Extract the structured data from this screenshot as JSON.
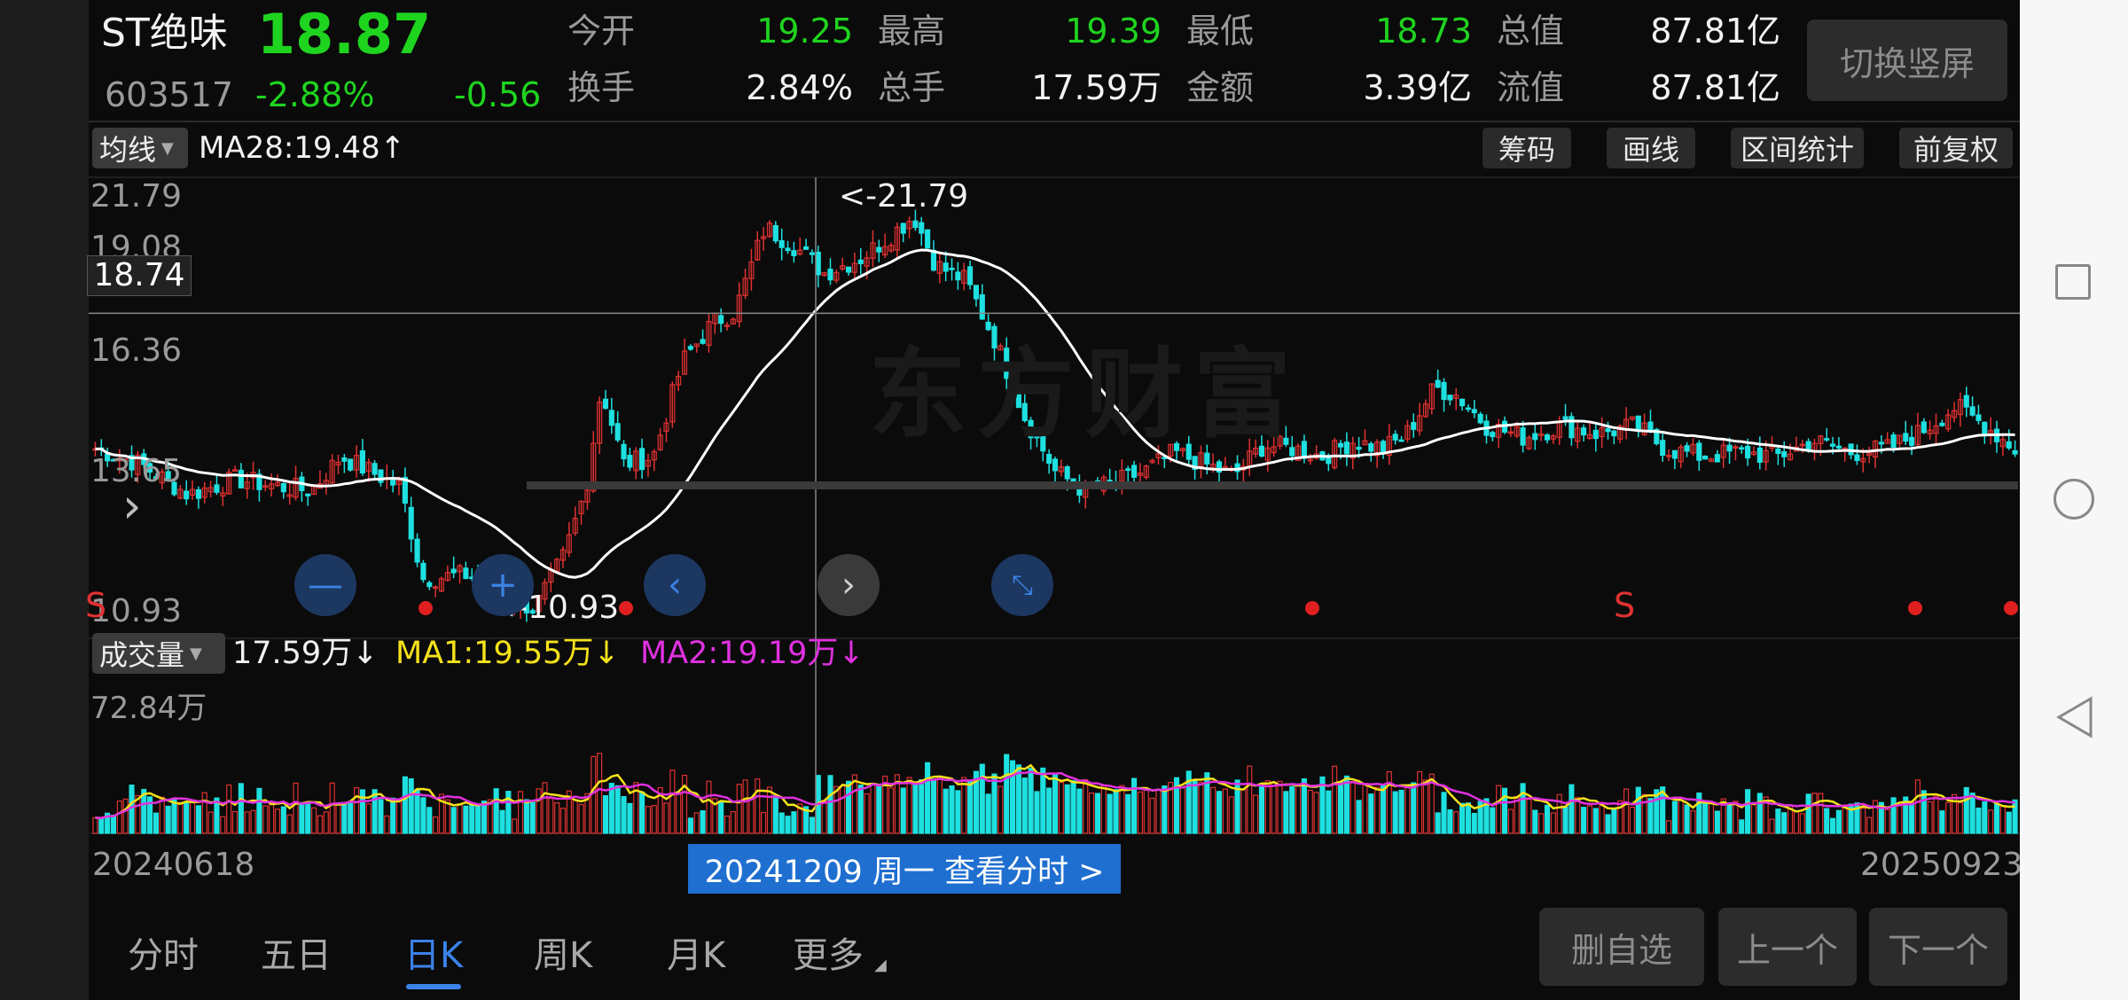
{
  "header": {
    "name": "ST绝味",
    "price": "18.87",
    "code": "603517",
    "change_pct": "-2.88%",
    "change_val": "-0.56",
    "stats": [
      {
        "label": "今开",
        "value": "19.25",
        "color": "#1fd41f"
      },
      {
        "label": "最高",
        "value": "19.39",
        "color": "#1fd41f"
      },
      {
        "label": "最低",
        "value": "18.73",
        "color": "#1fd41f"
      },
      {
        "label": "总值",
        "value": "87.81亿",
        "color": "#f2f2f2"
      },
      {
        "label": "换手",
        "value": "2.84%",
        "color": "#f2f2f2"
      },
      {
        "label": "总手",
        "value": "17.59万",
        "color": "#f2f2f2"
      },
      {
        "label": "金额",
        "value": "3.39亿",
        "color": "#f2f2f2"
      },
      {
        "label": "流值",
        "value": "87.81亿",
        "color": "#f2f2f2"
      }
    ],
    "switch_label": "切换竖屏"
  },
  "toolbar": {
    "ma_selector": "均线",
    "ma_text": "MA28:19.48↑",
    "buttons": [
      "筹码",
      "画线",
      "区间统计",
      "前复权"
    ]
  },
  "price_chart": {
    "y_labels": [
      "21.79",
      "19.08",
      "16.36",
      "13.65",
      "10.93"
    ],
    "crosshair_value": "18.74",
    "high_marker": "<-21.79",
    "low_marker": "<-10.93",
    "watermark": "东方财富",
    "s_marker": "S",
    "s_marker_left": "S"
  },
  "volume_chart": {
    "selector": "成交量",
    "vol_text": "17.59万↓",
    "ma1_text": "MA1:19.55万↓",
    "ma2_text": "MA2:19.19万↓",
    "max_label": "72.84万"
  },
  "dates": {
    "start": "20240618",
    "end": "20250923",
    "selected": "20241209 周一 查看分时 >"
  },
  "tabs": [
    "分时",
    "五日",
    "日K",
    "周K",
    "月K",
    "更多"
  ],
  "active_tab": "日K",
  "bottom_buttons": [
    "删自选",
    "上一个",
    "下一个"
  ],
  "colors": {
    "up": "#e03131",
    "down": "#1ee0e0",
    "ma": "#ffffff",
    "ma1": "#f5e21a",
    "ma2": "#e031e0",
    "accent": "#3b82ea"
  },
  "chart_data": {
    "type": "candlestick",
    "ylim": [
      10.93,
      21.79
    ],
    "x_range": [
      "20240618",
      "20250923"
    ],
    "anchors": [
      [
        0,
        15.2
      ],
      [
        12,
        14.8
      ],
      [
        25,
        14.0
      ],
      [
        38,
        14.4
      ],
      [
        50,
        14.2
      ],
      [
        58,
        14.1
      ],
      [
        66,
        15.0
      ],
      [
        74,
        14.6
      ],
      [
        82,
        14.2
      ],
      [
        88,
        11.8
      ],
      [
        100,
        11.9
      ],
      [
        112,
        11.3
      ],
      [
        118,
        11.0
      ],
      [
        126,
        12.4
      ],
      [
        132,
        14.2
      ],
      [
        136,
        16.8
      ],
      [
        142,
        14.8
      ],
      [
        150,
        15.0
      ],
      [
        158,
        17.5
      ],
      [
        166,
        18.5
      ],
      [
        172,
        18.8
      ],
      [
        180,
        21.0
      ],
      [
        188,
        20.5
      ],
      [
        196,
        19.8
      ],
      [
        206,
        20.2
      ],
      [
        214,
        20.8
      ],
      [
        220,
        21.3
      ],
      [
        226,
        20.0
      ],
      [
        234,
        19.6
      ],
      [
        242,
        18.0
      ],
      [
        250,
        16.0
      ],
      [
        258,
        14.6
      ],
      [
        266,
        14.1
      ],
      [
        274,
        14.3
      ],
      [
        282,
        14.6
      ],
      [
        290,
        15.1
      ],
      [
        298,
        14.8
      ],
      [
        306,
        14.5
      ],
      [
        314,
        15.3
      ],
      [
        322,
        15.2
      ],
      [
        330,
        15.0
      ],
      [
        338,
        15.4
      ],
      [
        346,
        15.2
      ],
      [
        352,
        15.5
      ],
      [
        360,
        16.8
      ],
      [
        366,
        16.6
      ],
      [
        374,
        15.8
      ],
      [
        384,
        15.5
      ],
      [
        394,
        15.8
      ],
      [
        404,
        15.6
      ],
      [
        414,
        15.8
      ],
      [
        422,
        15.2
      ],
      [
        432,
        15.0
      ],
      [
        442,
        15.1
      ],
      [
        452,
        15.0
      ],
      [
        462,
        15.4
      ],
      [
        472,
        15.1
      ],
      [
        482,
        15.2
      ],
      [
        490,
        15.6
      ],
      [
        500,
        16.3
      ],
      [
        508,
        15.8
      ],
      [
        516,
        15.2
      ]
    ],
    "volume_max": 72.84,
    "volume_unit": "万"
  }
}
